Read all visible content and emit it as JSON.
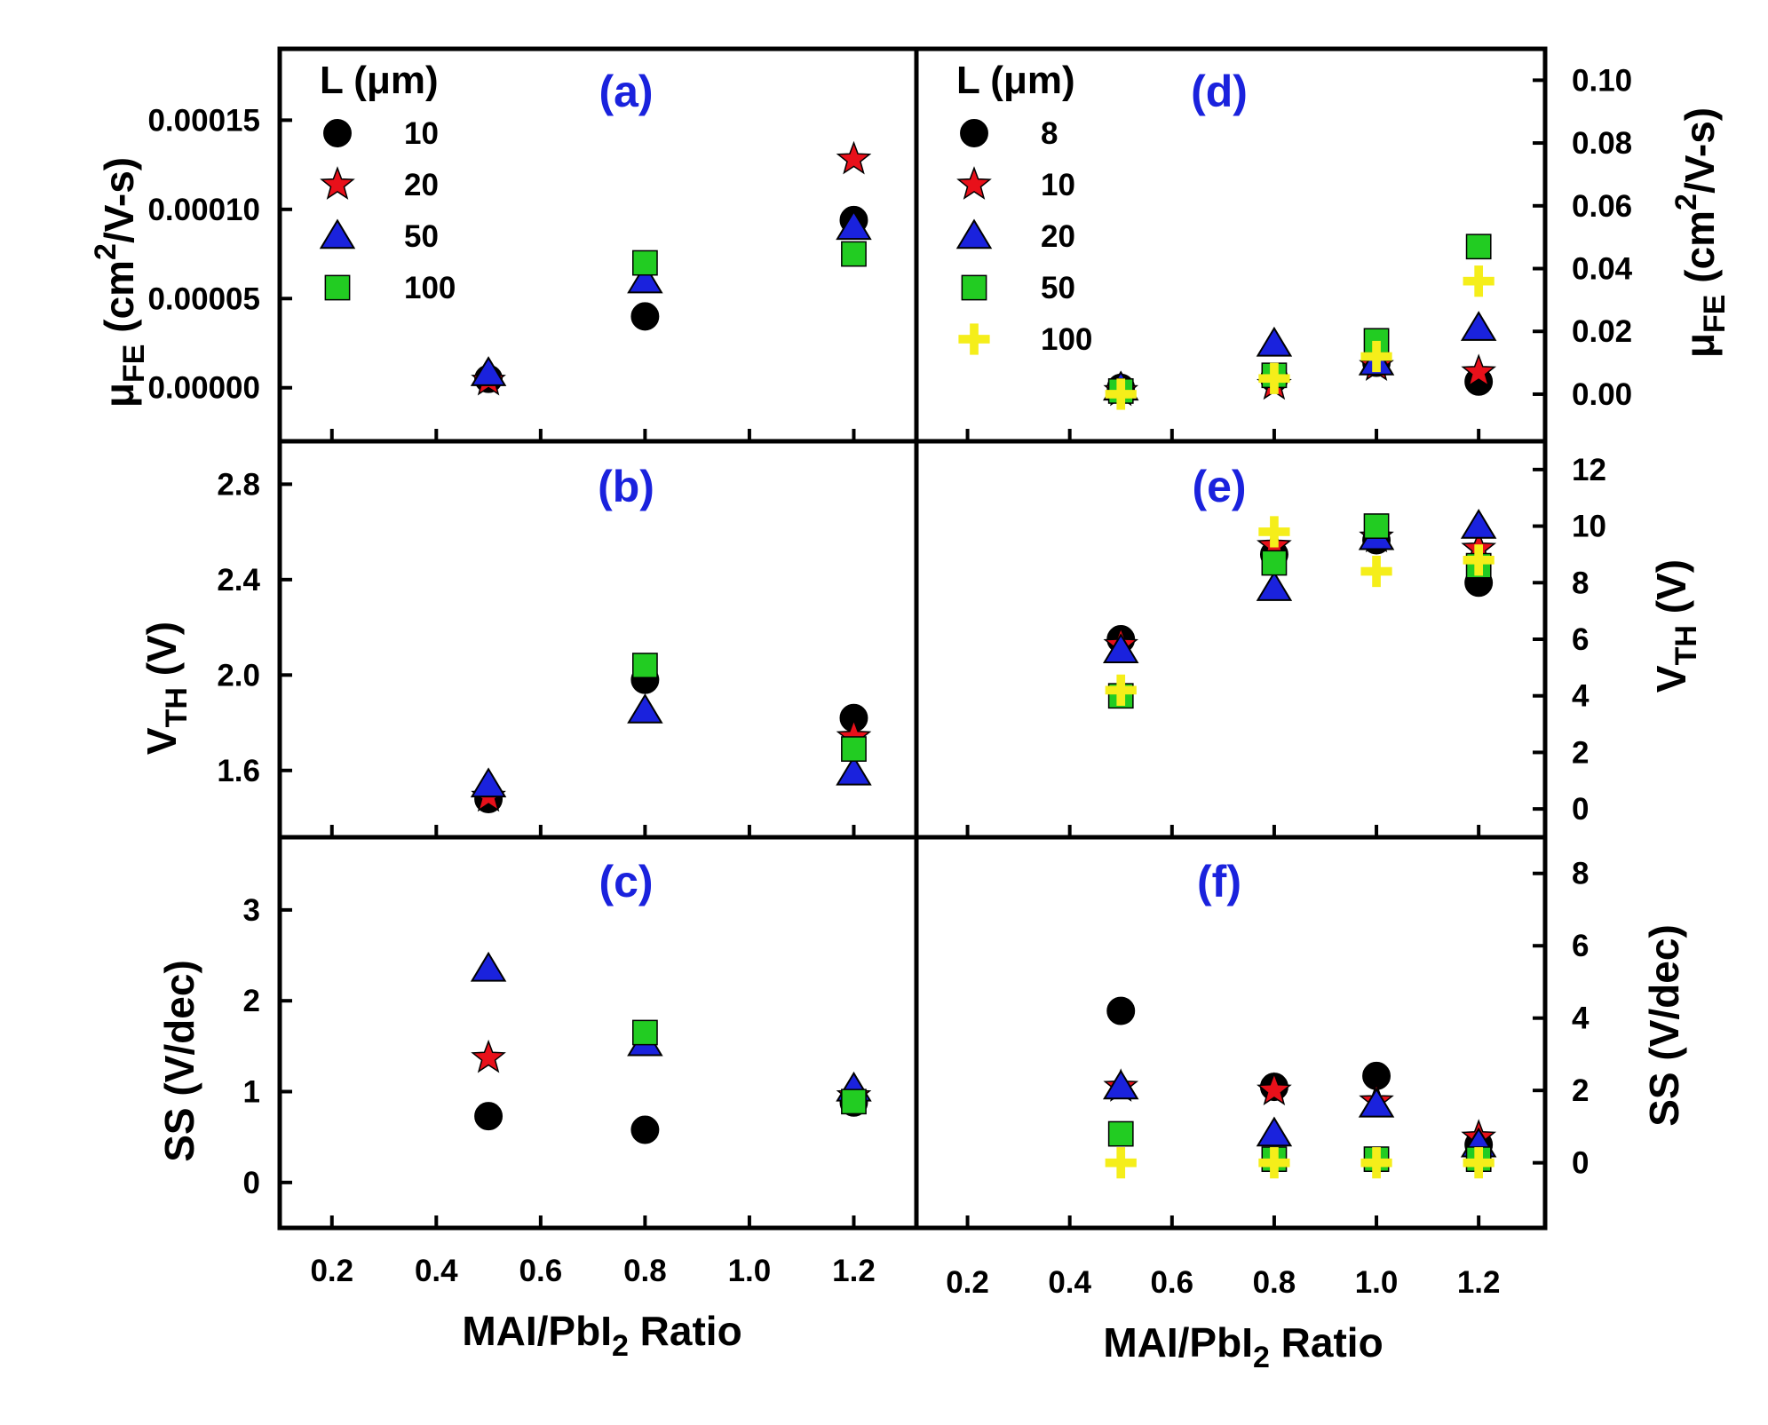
{
  "figure": {
    "x_axis_title": {
      "prefix": "MAI/PbI",
      "sub": "2",
      "suffix": " Ratio"
    },
    "x_ticks": [
      "0.2",
      "0.4",
      "0.6",
      "0.8",
      "1.0",
      "1.2"
    ],
    "legend_title": "L (μm)",
    "colors": {
      "panel_label": "#1a22dd",
      "circle": "#000000",
      "star": "#e8101a",
      "triangle": "#1a22dd",
      "square": "#22cc22",
      "plus": "#f5ee1a"
    },
    "axis_titles": {
      "mu": {
        "sym": "μ",
        "sub": "FE",
        "unit": " (cm",
        "sup": "2",
        "unit2": "/V-s)"
      },
      "vth": {
        "sym": "V",
        "sub": "TH",
        "unit": " (V)"
      },
      "ss": {
        "text": "SS (V/dec)"
      }
    }
  },
  "chart_data": [
    {
      "id": "a",
      "label": "(a)",
      "type": "scatter",
      "title": "",
      "xlabel": "MAI/PbI2 Ratio",
      "ylabel": "μFE (cm2/V-s)",
      "xlim": [
        0.1,
        1.32
      ],
      "ylim": [
        -3e-05,
        0.00019
      ],
      "yticks": [
        "0.00000",
        "0.00005",
        "0.00010",
        "0.00015"
      ],
      "ytick_values": [
        0,
        5e-05,
        0.0001,
        0.00015
      ],
      "legend": {
        "title": "L (μm)",
        "entries": [
          "10",
          "20",
          "50",
          "100"
        ]
      },
      "series": [
        {
          "name": "10",
          "marker": "circle",
          "x": [
            0.5,
            0.8,
            1.2
          ],
          "y": [
            5e-06,
            4e-05,
            9.4e-05
          ]
        },
        {
          "name": "20",
          "marker": "star",
          "x": [
            0.5,
            0.8,
            1.2
          ],
          "y": [
            4e-06,
            null,
            0.000128
          ]
        },
        {
          "name": "50",
          "marker": "triangle",
          "x": [
            0.5,
            0.8,
            1.2
          ],
          "y": [
            8e-06,
            6e-05,
            9e-05
          ]
        },
        {
          "name": "100",
          "marker": "square",
          "x": [
            0.5,
            0.8,
            1.2
          ],
          "y": [
            null,
            7e-05,
            7.5e-05
          ]
        }
      ]
    },
    {
      "id": "b",
      "label": "(b)",
      "type": "scatter",
      "title": "",
      "xlabel": "MAI/PbI2 Ratio",
      "ylabel": "VTH (V)",
      "xlim": [
        0.1,
        1.32
      ],
      "ylim": [
        1.32,
        2.98
      ],
      "yticks": [
        "1.6",
        "2.0",
        "2.4",
        "2.8"
      ],
      "ytick_values": [
        1.6,
        2.0,
        2.4,
        2.8
      ],
      "series": [
        {
          "name": "10",
          "marker": "circle",
          "x": [
            0.5,
            0.8,
            1.2
          ],
          "y": [
            1.48,
            1.98,
            1.82
          ]
        },
        {
          "name": "20",
          "marker": "star",
          "x": [
            0.5,
            0.8,
            1.2
          ],
          "y": [
            1.49,
            null,
            1.74
          ]
        },
        {
          "name": "50",
          "marker": "triangle",
          "x": [
            0.5,
            0.8,
            1.2
          ],
          "y": [
            1.54,
            1.85,
            1.59
          ]
        },
        {
          "name": "100",
          "marker": "square",
          "x": [
            0.5,
            0.8,
            1.2
          ],
          "y": [
            null,
            2.04,
            1.69
          ]
        }
      ]
    },
    {
      "id": "c",
      "label": "(c)",
      "type": "scatter",
      "title": "",
      "xlabel": "MAI/PbI2 Ratio",
      "ylabel": "SS (V/dec)",
      "xlim": [
        0.1,
        1.32
      ],
      "ylim": [
        -0.5,
        3.8
      ],
      "yticks": [
        "0",
        "1",
        "2",
        "3"
      ],
      "ytick_values": [
        0,
        1,
        2,
        3
      ],
      "series": [
        {
          "name": "10",
          "marker": "circle",
          "x": [
            0.5,
            0.8,
            1.2
          ],
          "y": [
            0.73,
            0.58,
            0.88
          ]
        },
        {
          "name": "20",
          "marker": "star",
          "x": [
            0.5,
            0.8,
            1.2
          ],
          "y": [
            1.37,
            null,
            0.95
          ]
        },
        {
          "name": "50",
          "marker": "triangle",
          "x": [
            0.5,
            0.8,
            1.2
          ],
          "y": [
            2.35,
            1.53,
            1.03
          ]
        },
        {
          "name": "100",
          "marker": "square",
          "x": [
            0.5,
            0.8,
            1.2
          ],
          "y": [
            null,
            1.65,
            0.89
          ]
        }
      ]
    },
    {
      "id": "d",
      "label": "(d)",
      "type": "scatter",
      "title": "",
      "xlabel": "MAI/PbI2 Ratio",
      "ylabel": "μFE (cm2/V-s)",
      "xlim": [
        0.1,
        1.33
      ],
      "ylim": [
        -0.015,
        0.11
      ],
      "yticks": [
        "0.00",
        "0.02",
        "0.04",
        "0.06",
        "0.08",
        "0.10"
      ],
      "ytick_values": [
        0,
        0.02,
        0.04,
        0.06,
        0.08,
        0.1
      ],
      "legend": {
        "title": "L (μm)",
        "entries": [
          "8",
          "10",
          "20",
          "50",
          "100"
        ]
      },
      "series": [
        {
          "name": "8",
          "marker": "circle",
          "x": [
            0.5,
            0.8,
            1.0,
            1.2
          ],
          "y": [
            0.002,
            0.005,
            0.01,
            0.004
          ]
        },
        {
          "name": "10",
          "marker": "star",
          "x": [
            0.5,
            0.8,
            1.0,
            1.2
          ],
          "y": [
            0.001,
            0.003,
            0.009,
            0.007
          ]
        },
        {
          "name": "20",
          "marker": "triangle",
          "x": [
            0.5,
            0.8,
            1.0,
            1.2
          ],
          "y": [
            0.002,
            0.016,
            0.01,
            0.021
          ]
        },
        {
          "name": "50",
          "marker": "square",
          "x": [
            0.5,
            0.8,
            1.0,
            1.2
          ],
          "y": [
            0.001,
            0.006,
            0.017,
            0.047
          ]
        },
        {
          "name": "100",
          "marker": "plus",
          "x": [
            0.5,
            0.8,
            1.0,
            1.2
          ],
          "y": [
            0.0,
            0.005,
            0.012,
            0.036
          ]
        }
      ]
    },
    {
      "id": "e",
      "label": "(e)",
      "type": "scatter",
      "title": "",
      "xlabel": "MAI/PbI2 Ratio",
      "ylabel": "VTH (V)",
      "xlim": [
        0.1,
        1.33
      ],
      "ylim": [
        -1.0,
        13.0
      ],
      "yticks": [
        "0",
        "2",
        "4",
        "6",
        "8",
        "10",
        "12"
      ],
      "ytick_values": [
        0,
        2,
        4,
        6,
        8,
        10,
        12
      ],
      "series": [
        {
          "name": "8",
          "marker": "circle",
          "x": [
            0.5,
            0.8,
            1.0,
            1.2
          ],
          "y": [
            6.0,
            9.0,
            9.5,
            8.0
          ]
        },
        {
          "name": "10",
          "marker": "star",
          "x": [
            0.5,
            0.8,
            1.0,
            1.2
          ],
          "y": [
            5.8,
            9.3,
            9.6,
            9.2
          ]
        },
        {
          "name": "20",
          "marker": "triangle",
          "x": [
            0.5,
            0.8,
            1.0,
            1.2
          ],
          "y": [
            5.6,
            7.8,
            9.6,
            10.0
          ]
        },
        {
          "name": "50",
          "marker": "square",
          "x": [
            0.5,
            0.8,
            1.0,
            1.2
          ],
          "y": [
            4.0,
            8.7,
            10.0,
            8.6
          ]
        },
        {
          "name": "100",
          "marker": "plus",
          "x": [
            0.5,
            0.8,
            1.0,
            1.2
          ],
          "y": [
            4.2,
            9.8,
            8.4,
            8.8
          ]
        }
      ]
    },
    {
      "id": "f",
      "label": "(f)",
      "type": "scatter",
      "title": "",
      "xlabel": "MAI/PbI2 Ratio",
      "ylabel": "SS (V/dec)",
      "xlim": [
        0.1,
        1.33
      ],
      "ylim": [
        -1.8,
        9.0
      ],
      "yticks": [
        "0",
        "2",
        "4",
        "6",
        "8"
      ],
      "ytick_values": [
        0,
        2,
        4,
        6,
        8
      ],
      "series": [
        {
          "name": "8",
          "marker": "circle",
          "x": [
            0.5,
            0.8,
            1.0,
            1.2
          ],
          "y": [
            4.2,
            2.1,
            2.4,
            0.5
          ]
        },
        {
          "name": "10",
          "marker": "star",
          "x": [
            0.5,
            0.8,
            1.0,
            1.2
          ],
          "y": [
            2.1,
            2.0,
            1.7,
            0.7
          ]
        },
        {
          "name": "20",
          "marker": "triangle",
          "x": [
            0.5,
            0.8,
            1.0,
            1.2
          ],
          "y": [
            2.1,
            0.8,
            1.6,
            0.5
          ]
        },
        {
          "name": "50",
          "marker": "square",
          "x": [
            0.5,
            0.8,
            1.0,
            1.2
          ],
          "y": [
            0.8,
            0.1,
            0.1,
            0.1
          ]
        },
        {
          "name": "100",
          "marker": "plus",
          "x": [
            0.5,
            0.8,
            1.0,
            1.2
          ],
          "y": [
            0.0,
            0.0,
            0.0,
            0.0
          ]
        }
      ]
    }
  ]
}
